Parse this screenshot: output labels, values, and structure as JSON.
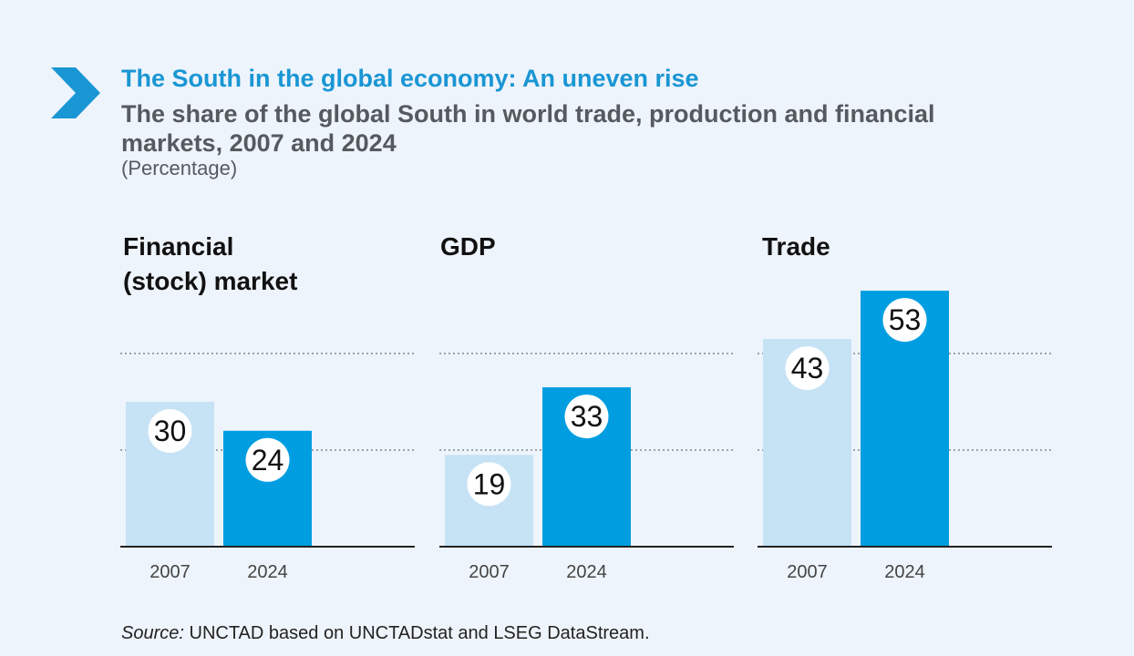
{
  "header": {
    "title": "The South in the global economy: An uneven rise",
    "subtitle": "The share of the global South in world trade, production and financial markets, 2007 and 2024",
    "unit": "(Percentage)"
  },
  "colors": {
    "accent": "#1996d4",
    "bar_2007": "#c6e2f5",
    "bar_2024": "#009ee0"
  },
  "chart_data": [
    {
      "type": "bar",
      "title": "Financial\n(stock) market",
      "categories": [
        "2007",
        "2024"
      ],
      "values": [
        30,
        24
      ],
      "ylim": [
        0,
        60
      ],
      "grid": true
    },
    {
      "type": "bar",
      "title": "GDP",
      "categories": [
        "2007",
        "2024"
      ],
      "values": [
        19,
        33
      ],
      "ylim": [
        0,
        60
      ],
      "grid": true
    },
    {
      "type": "bar",
      "title": "Trade",
      "categories": [
        "2007",
        "2024"
      ],
      "values": [
        43,
        53
      ],
      "ylim": [
        0,
        60
      ],
      "grid": true
    }
  ],
  "footer": {
    "source_label": "Source:",
    "source_text": " UNCTAD based on UNCTADstat and LSEG DataStream."
  }
}
